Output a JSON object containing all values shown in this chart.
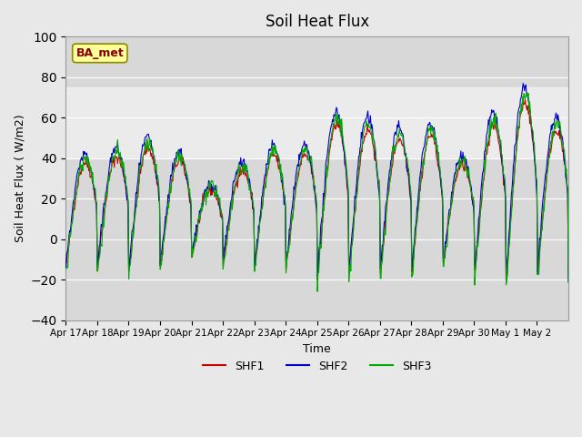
{
  "title": "Soil Heat Flux",
  "ylabel": "Soil Heat Flux ( W/m2)",
  "xlabel": "Time",
  "ylim": [
    -40,
    100
  ],
  "yticks": [
    -40,
    -20,
    0,
    20,
    40,
    60,
    80,
    100
  ],
  "shaded_band": [
    40,
    75
  ],
  "bg_color": "#e8e8e8",
  "plot_bg_color": "#d8d8d8",
  "line_colors": {
    "SHF1": "#cc0000",
    "SHF2": "#0000cc",
    "SHF3": "#00aa00"
  },
  "legend_label": "BA_met",
  "legend_box_color": "#ffff99",
  "legend_box_edge_color": "#8b8b00",
  "n_days": 16,
  "tick_labels": [
    "Apr 17",
    "Apr 18",
    "Apr 19",
    "Apr 20",
    "Apr 21",
    "Apr 22",
    "Apr 23",
    "Apr 24",
    "Apr 25",
    "Apr 26",
    "Apr 27",
    "Apr 28",
    "Apr 29",
    "Apr 30",
    "May 1",
    "May 2"
  ]
}
